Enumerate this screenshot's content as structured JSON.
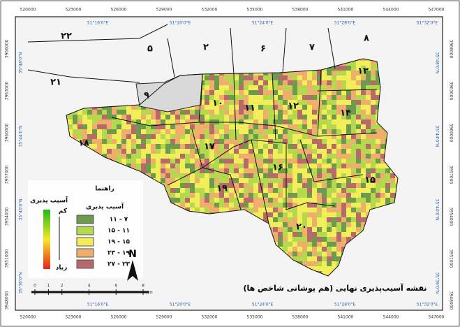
{
  "title": "نقشه آسیب‌پذیری نهایی (هم پوشانی شاخص ها)",
  "legend": {
    "title": "راهنما",
    "subtitle": "آسیب پذیری",
    "classes": [
      {
        "label": "۷ - ۱۱",
        "color": "#6e9a4e"
      },
      {
        "label": "۱۱ - ۱۵",
        "color": "#b5d94e"
      },
      {
        "label": "۱۵ - ۱۹",
        "color": "#f2ee5a"
      },
      {
        "label": "۱۹ - ۲۳",
        "color": "#f0ae6c"
      },
      {
        "label": "۲۳ - ۲۷",
        "color": "#b86a6a"
      }
    ]
  },
  "gradient": {
    "title": "آسیب پذیری",
    "low": "کم",
    "high": "زیاد"
  },
  "scale_bar": {
    "ticks": [
      0,
      1,
      2,
      4,
      6,
      8
    ],
    "unit": "Km"
  },
  "north": "N",
  "districts": [
    "۲۲",
    "۵",
    "۲",
    "۶",
    "۷",
    "۸",
    "۲۱",
    "۹",
    "۱۳",
    "۱۰",
    "۱۱",
    "۱۲",
    "۱۴",
    "۱۸",
    "۱۷",
    "۱۶",
    "۱۹",
    "۱۵",
    "۲۰"
  ],
  "grid": {
    "eastings": [
      "520000",
      "523000",
      "526000",
      "529000",
      "532000",
      "535000",
      "538000",
      "541000",
      "544000",
      "547000"
    ],
    "longitudes": [
      "51°16'0\"E",
      "51°20'0\"E",
      "51°24'0\"E",
      "51°28'0\"E",
      "51°32'0\"E"
    ],
    "northings": [
      "3966000",
      "3963000",
      "3960000",
      "3957000",
      "3954000",
      "3951000",
      "3948000"
    ],
    "latitudes": [
      "35°48'0\"N",
      "35°44'0\"N",
      "35°40'0\"N",
      "35°36'0\"N"
    ]
  }
}
